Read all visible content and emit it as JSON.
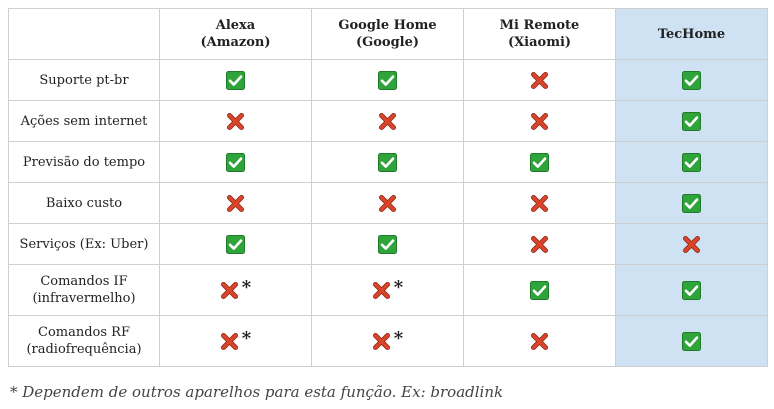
{
  "colors": {
    "check_bg": "#2ea43a",
    "cross": "#d9442b",
    "highlight": "#cfe2f3"
  },
  "columns": [
    {
      "line1": "",
      "line2": ""
    },
    {
      "line1": "Alexa",
      "line2": "(Amazon)"
    },
    {
      "line1": "Google Home",
      "line2": "(Google)"
    },
    {
      "line1": "Mi Remote",
      "line2": "(Xiaomi)"
    },
    {
      "line1": "TecHome",
      "line2": ""
    }
  ],
  "rows": [
    {
      "line1": "Suporte pt-br",
      "line2": "",
      "cells": [
        "check-icon",
        "check-icon",
        "cross-icon",
        "check-icon"
      ],
      "stars": [
        "",
        "",
        "",
        ""
      ]
    },
    {
      "line1": "Ações sem internet",
      "line2": "",
      "cells": [
        "cross-icon",
        "cross-icon",
        "cross-icon",
        "check-icon"
      ],
      "stars": [
        "",
        "",
        "",
        ""
      ]
    },
    {
      "line1": "Previsão do tempo",
      "line2": "",
      "cells": [
        "check-icon",
        "check-icon",
        "check-icon",
        "check-icon"
      ],
      "stars": [
        "",
        "",
        "",
        ""
      ]
    },
    {
      "line1": "Baixo custo",
      "line2": "",
      "cells": [
        "cross-icon",
        "cross-icon",
        "cross-icon",
        "check-icon"
      ],
      "stars": [
        "",
        "",
        "",
        ""
      ]
    },
    {
      "line1": "Serviços (Ex: Uber)",
      "line2": "",
      "cells": [
        "check-icon",
        "check-icon",
        "cross-icon",
        "cross-icon"
      ],
      "stars": [
        "",
        "",
        "",
        ""
      ]
    },
    {
      "line1": "Comandos IF",
      "line2": "(infravermelho)",
      "cells": [
        "cross-icon",
        "cross-icon",
        "check-icon",
        "check-icon"
      ],
      "stars": [
        "*",
        "*",
        "",
        ""
      ]
    },
    {
      "line1": "Comandos RF",
      "line2": "(radiofrequência)",
      "cells": [
        "cross-icon",
        "cross-icon",
        "cross-icon",
        "check-icon"
      ],
      "stars": [
        "*",
        "*",
        "",
        ""
      ]
    }
  ],
  "footnote": "* Dependem de outros aparelhos para esta função. Ex: broadlink"
}
